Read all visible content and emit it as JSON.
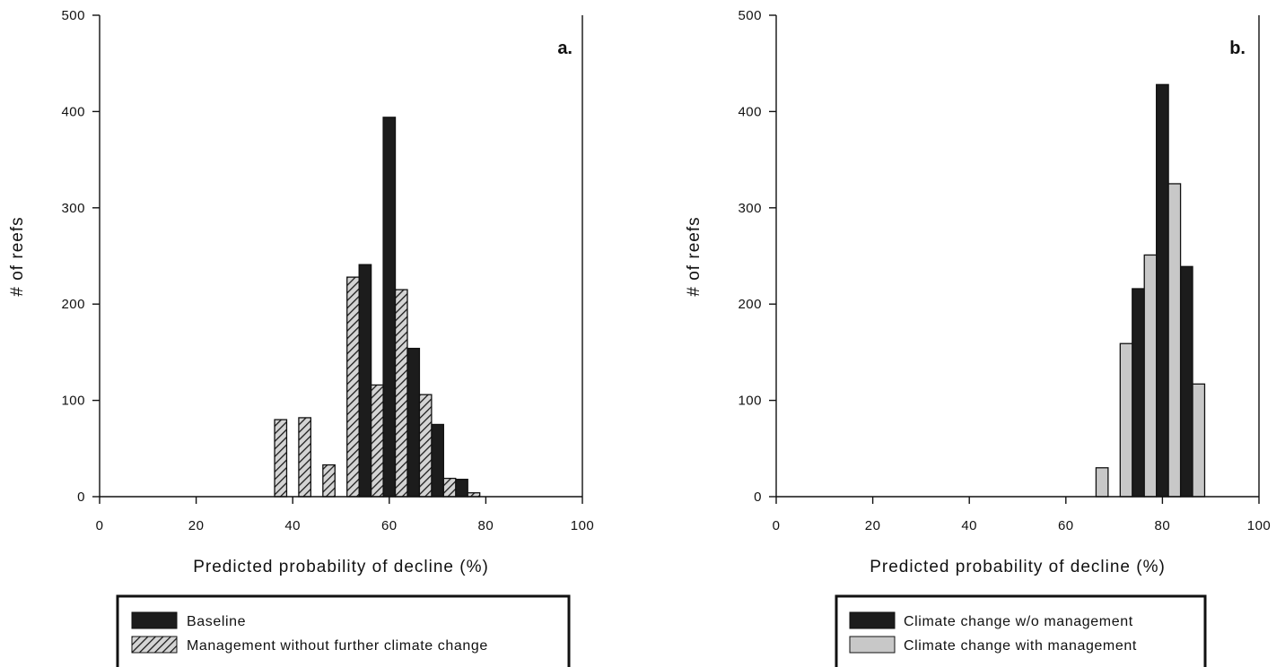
{
  "chart_data": [
    {
      "type": "bar",
      "panel_label": "a.",
      "xlabel": "Predicted probability of decline (%)",
      "ylabel": "# of reefs",
      "xlim": [
        0,
        100
      ],
      "ylim": [
        0,
        500
      ],
      "xticks": [
        0,
        20,
        40,
        60,
        80,
        100
      ],
      "yticks": [
        0,
        100,
        200,
        300,
        400,
        500
      ],
      "grid": false,
      "legend_position": "below",
      "series": [
        {
          "name": "Baseline",
          "fill": "#1c1c1c",
          "pattern": "solid",
          "x": [
            55,
            60,
            65,
            70,
            75
          ],
          "values": [
            241,
            394,
            154,
            75,
            18
          ]
        },
        {
          "name": "Management without further climate change",
          "fill": "#d0d0d0",
          "pattern": "hatch",
          "x": [
            37.5,
            42.5,
            47.5,
            52.5,
            57.5,
            62.5,
            67.5,
            72.5,
            77.5
          ],
          "values": [
            80,
            82,
            33,
            228,
            116,
            215,
            106,
            19,
            4
          ]
        }
      ]
    },
    {
      "type": "bar",
      "panel_label": "b.",
      "xlabel": "Predicted probability of decline (%)",
      "ylabel": "# of reefs",
      "xlim": [
        0,
        100
      ],
      "ylim": [
        0,
        500
      ],
      "xticks": [
        0,
        20,
        40,
        60,
        80,
        100
      ],
      "yticks": [
        0,
        100,
        200,
        300,
        400,
        500
      ],
      "grid": false,
      "legend_position": "below",
      "series": [
        {
          "name": "Climate change w/o management",
          "fill": "#1c1c1c",
          "pattern": "solid",
          "x": [
            75,
            80,
            85
          ],
          "values": [
            216,
            428,
            239
          ]
        },
        {
          "name": "Climate change with management",
          "fill": "#c8c8c8",
          "pattern": "solid",
          "x": [
            67.5,
            72.5,
            77.5,
            82.5,
            87.5
          ],
          "values": [
            30,
            159,
            251,
            325,
            117
          ]
        }
      ]
    }
  ]
}
